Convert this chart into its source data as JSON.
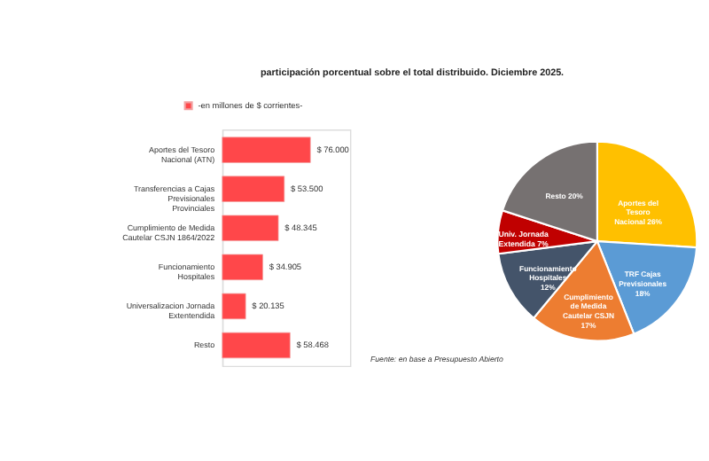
{
  "chart_data": [
    {
      "type": "bar",
      "orientation": "horizontal",
      "title": "participación porcentual sobre el total distribuido. Diciembre 2025.",
      "categories": [
        "Aportes del Tesoro Nacional (ATN)",
        "Transferencias a Cajas Previsionales Provinciales",
        "Cumplimiento de Medida Cautelar CSJN 1864/2022",
        "Funcionamiento Hospitales",
        "Universalizacion Jornada Extentendida",
        "Resto"
      ],
      "series": [
        {
          "name": "-en millones de $ corrientes-",
          "color": "#ff474a",
          "values": [
            76000,
            53500,
            48345,
            34905,
            20135,
            58468
          ],
          "value_labels": [
            "$ 76.000",
            "$ 53.500",
            "$ 48.345",
            "$ 34.905",
            "$ 20.135",
            "$ 58.468"
          ]
        }
      ],
      "legend": "top left"
    },
    {
      "type": "pie",
      "categories": [
        "Aportes del Tesoro Nacional 26%",
        "TRF Cajas Previsionales 18%",
        "Cumplimiento de Medida Cautelar CSJN 17%",
        "Funcionamiento Hospitales 12%",
        "Univ. Jornada Extendida 7%",
        "Resto 20%"
      ],
      "values": [
        26,
        18,
        17,
        12,
        7,
        20
      ],
      "colors": [
        "#ffc000",
        "#5b9bd5",
        "#ed7d31",
        "#44546a",
        "#c00000",
        "#767171"
      ],
      "annotations": [
        "Fuente: en base a Presupuesto Abierto"
      ]
    }
  ]
}
